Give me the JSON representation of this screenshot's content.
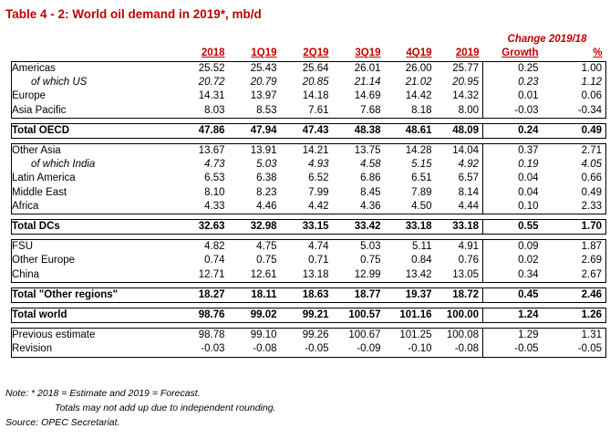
{
  "title": "Table 4 - 2: World oil demand in 2019*, mb/d",
  "change_header": "Change 2019/18",
  "columns": [
    "2018",
    "1Q19",
    "2Q19",
    "3Q19",
    "4Q19",
    "2019",
    "Growth",
    "%"
  ],
  "groups": [
    {
      "rows": [
        {
          "label": "Americas",
          "values": [
            "25.52",
            "25.43",
            "25.64",
            "26.01",
            "26.00",
            "25.77",
            "0.25",
            "1.00"
          ]
        },
        {
          "label": "of which US",
          "italic": true,
          "values": [
            "20.72",
            "20.79",
            "20.85",
            "21.14",
            "21.02",
            "20.95",
            "0.23",
            "1.12"
          ]
        },
        {
          "label": "Europe",
          "values": [
            "14.31",
            "13.97",
            "14.18",
            "14.69",
            "14.42",
            "14.32",
            "0.01",
            "0.06"
          ]
        },
        {
          "label": "Asia Pacific",
          "values": [
            "8.03",
            "8.53",
            "7.61",
            "7.68",
            "8.18",
            "8.00",
            "-0.03",
            "-0.34"
          ]
        }
      ],
      "total": {
        "label": "Total OECD",
        "values": [
          "47.86",
          "47.94",
          "47.43",
          "48.38",
          "48.61",
          "48.09",
          "0.24",
          "0.49"
        ]
      }
    },
    {
      "rows": [
        {
          "label": "Other Asia",
          "values": [
            "13.67",
            "13.91",
            "14.21",
            "13.75",
            "14.28",
            "14.04",
            "0.37",
            "2.71"
          ]
        },
        {
          "label": "of which India",
          "italic": true,
          "values": [
            "4.73",
            "5.03",
            "4.93",
            "4.58",
            "5.15",
            "4.92",
            "0.19",
            "4.05"
          ]
        },
        {
          "label": "Latin America",
          "values": [
            "6.53",
            "6.38",
            "6.52",
            "6.86",
            "6.51",
            "6.57",
            "0.04",
            "0.66"
          ]
        },
        {
          "label": "Middle East",
          "values": [
            "8.10",
            "8.23",
            "7.99",
            "8.45",
            "7.89",
            "8.14",
            "0.04",
            "0.49"
          ]
        },
        {
          "label": "Africa",
          "values": [
            "4.33",
            "4.46",
            "4.42",
            "4.36",
            "4.50",
            "4.44",
            "0.10",
            "2.33"
          ]
        }
      ],
      "total": {
        "label": "Total DCs",
        "values": [
          "32.63",
          "32.98",
          "33.15",
          "33.42",
          "33.18",
          "33.18",
          "0.55",
          "1.70"
        ]
      }
    },
    {
      "rows": [
        {
          "label": "FSU",
          "values": [
            "4.82",
            "4.75",
            "4.74",
            "5.03",
            "5.11",
            "4.91",
            "0.09",
            "1.87"
          ]
        },
        {
          "label": "Other Europe",
          "values": [
            "0.74",
            "0.75",
            "0.71",
            "0.75",
            "0.84",
            "0.76",
            "0.02",
            "2.69"
          ]
        },
        {
          "label": "China",
          "values": [
            "12.71",
            "12.61",
            "13.18",
            "12.99",
            "13.42",
            "13.05",
            "0.34",
            "2.67"
          ]
        }
      ],
      "total": {
        "label": "Total \"Other regions\"",
        "values": [
          "18.27",
          "18.11",
          "18.63",
          "18.77",
          "19.37",
          "18.72",
          "0.45",
          "2.46"
        ]
      }
    }
  ],
  "world": {
    "label": "Total world",
    "values": [
      "98.76",
      "99.02",
      "99.21",
      "100.57",
      "101.16",
      "100.00",
      "1.24",
      "1.26"
    ]
  },
  "previous": {
    "label": "Previous estimate",
    "values": [
      "98.78",
      "99.10",
      "99.26",
      "100.67",
      "101.25",
      "100.08",
      "1.29",
      "1.31"
    ]
  },
  "revision": {
    "label": "Revision",
    "values": [
      "-0.03",
      "-0.08",
      "-0.05",
      "-0.09",
      "-0.10",
      "-0.08",
      "-0.05",
      "-0.05"
    ]
  },
  "notes": [
    "Note: * 2018 = Estimate and 2019 = Forecast.",
    "Totals may not add up due to independent rounding.",
    "Source: OPEC Secretariat."
  ]
}
